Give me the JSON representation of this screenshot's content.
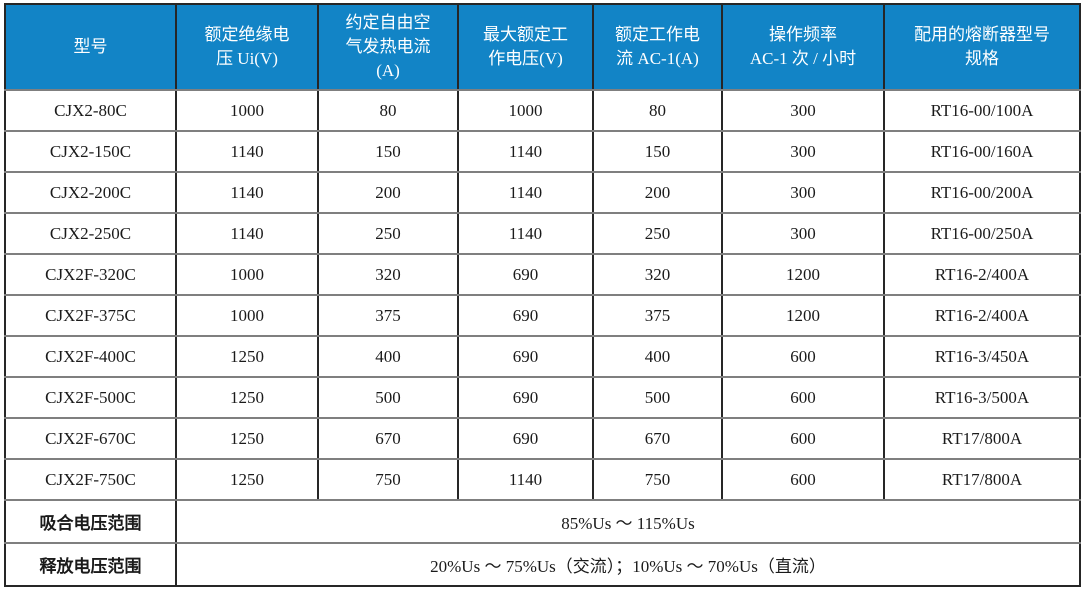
{
  "colors": {
    "header_bg": "#1284C6",
    "header_text": "#FFFFFF",
    "body_text": "#1A1A1A",
    "border_dark": "#262626",
    "border_light": "#7F7F7F",
    "page_bg": "#FFFFFF"
  },
  "table": {
    "columns": [
      {
        "key": "model",
        "label": "型号"
      },
      {
        "key": "rated_insulation_voltage",
        "label": "额定绝缘电\n压 Ui(V)"
      },
      {
        "key": "conventional_free_air_thermal_current",
        "label": "约定自由空\n气发热电流\n(A)"
      },
      {
        "key": "max_rated_working_voltage",
        "label": "最大额定工\n作电压(V)"
      },
      {
        "key": "rated_working_current_ac1",
        "label": "额定工作电\n流 AC-1(A)"
      },
      {
        "key": "operating_frequency",
        "label": "操作频率\nAC-1 次 / 小时"
      },
      {
        "key": "fuse_model_spec",
        "label": "配用的熔断器型号\n规格"
      }
    ],
    "rows": [
      [
        "CJX2-80C",
        "1000",
        "80",
        "1000",
        "80",
        "300",
        "RT16-00/100A"
      ],
      [
        "CJX2-150C",
        "1140",
        "150",
        "1140",
        "150",
        "300",
        "RT16-00/160A"
      ],
      [
        "CJX2-200C",
        "1140",
        "200",
        "1140",
        "200",
        "300",
        "RT16-00/200A"
      ],
      [
        "CJX2-250C",
        "1140",
        "250",
        "1140",
        "250",
        "300",
        "RT16-00/250A"
      ],
      [
        "CJX2F-320C",
        "1000",
        "320",
        "690",
        "320",
        "1200",
        "RT16-2/400A"
      ],
      [
        "CJX2F-375C",
        "1000",
        "375",
        "690",
        "375",
        "1200",
        "RT16-2/400A"
      ],
      [
        "CJX2F-400C",
        "1250",
        "400",
        "690",
        "400",
        "600",
        "RT16-3/450A"
      ],
      [
        "CJX2F-500C",
        "1250",
        "500",
        "690",
        "500",
        "600",
        "RT16-3/500A"
      ],
      [
        "CJX2F-670C",
        "1250",
        "670",
        "690",
        "670",
        "600",
        "RT17/800A"
      ],
      [
        "CJX2F-750C",
        "1250",
        "750",
        "1140",
        "750",
        "600",
        "RT17/800A"
      ]
    ],
    "footer_rows": [
      {
        "label": "吸合电压范围",
        "value": "85%Us ～ 115%Us"
      },
      {
        "label": "释放电压范围",
        "value": "20%Us ～ 75%Us（交流）；10%Us ～ 70%Us（直流）"
      }
    ]
  }
}
